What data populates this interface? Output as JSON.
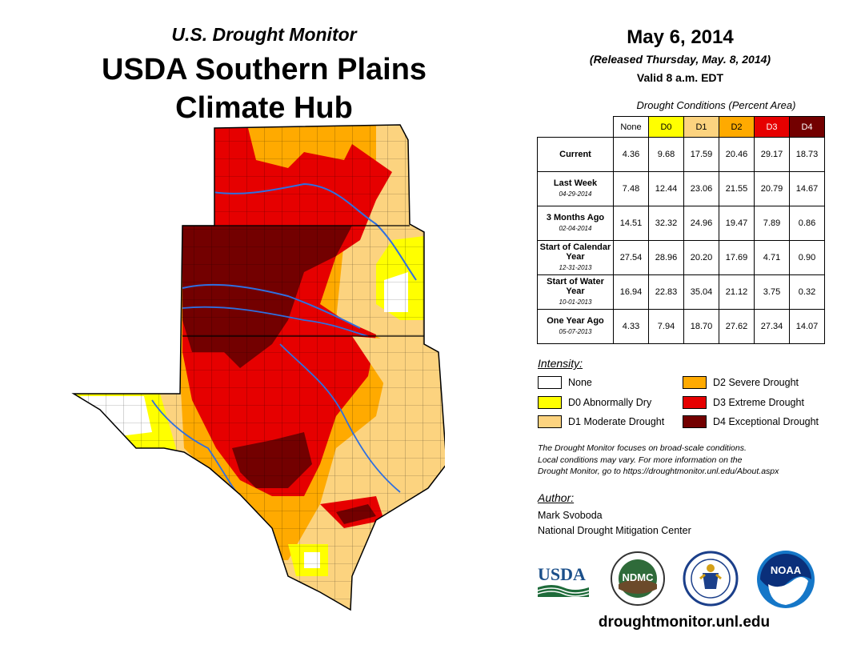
{
  "header": {
    "supertitle": "U.S. Drought Monitor",
    "title_line1": "USDA Southern Plains",
    "title_line2": "Climate Hub"
  },
  "release": {
    "date": "May 6, 2014",
    "released": "(Released Thursday, May. 8, 2014)",
    "valid": "Valid 8 a.m. EDT"
  },
  "table": {
    "title": "Drought Conditions (Percent Area)",
    "columns": [
      "None",
      "D0",
      "D1",
      "D2",
      "D3",
      "D4"
    ],
    "column_colors": [
      "#ffffff",
      "#ffff00",
      "#fcd37f",
      "#ffaa00",
      "#e60000",
      "#730000"
    ],
    "column_text_colors": [
      "#000000",
      "#000000",
      "#000000",
      "#000000",
      "#ffffff",
      "#ffffff"
    ],
    "rows": [
      {
        "label": "Current",
        "sublabel": "",
        "values": [
          "4.36",
          "9.68",
          "17.59",
          "20.46",
          "29.17",
          "18.73"
        ]
      },
      {
        "label": "Last Week",
        "sublabel": "04-29-2014",
        "values": [
          "7.48",
          "12.44",
          "23.06",
          "21.55",
          "20.79",
          "14.67"
        ]
      },
      {
        "label": "3 Months Ago",
        "sublabel": "02-04-2014",
        "values": [
          "14.51",
          "32.32",
          "24.96",
          "19.47",
          "7.89",
          "0.86"
        ]
      },
      {
        "label": "Start of Calendar Year",
        "sublabel": "12-31-2013",
        "values": [
          "27.54",
          "28.96",
          "20.20",
          "17.69",
          "4.71",
          "0.90"
        ]
      },
      {
        "label": "Start of Water Year",
        "sublabel": "10-01-2013",
        "values": [
          "16.94",
          "22.83",
          "35.04",
          "21.12",
          "3.75",
          "0.32"
        ]
      },
      {
        "label": "One Year Ago",
        "sublabel": "05-07-2013",
        "values": [
          "4.33",
          "7.94",
          "18.70",
          "27.62",
          "27.34",
          "14.07"
        ]
      }
    ]
  },
  "legend": {
    "title": "Intensity:",
    "items": [
      {
        "label": "None",
        "color": "#ffffff"
      },
      {
        "label": "D0 Abnormally Dry",
        "color": "#ffff00"
      },
      {
        "label": "D1 Moderate Drought",
        "color": "#fcd37f"
      },
      {
        "label": "D2 Severe Drought",
        "color": "#ffaa00"
      },
      {
        "label": "D3 Extreme Drought",
        "color": "#e60000"
      },
      {
        "label": "D4 Exceptional Drought",
        "color": "#730000"
      }
    ]
  },
  "note": {
    "line1": "The Drought Monitor focuses on broad-scale conditions.",
    "line2": "Local conditions may vary. For more information on the",
    "line3": "Drought Monitor, go to https://droughtmonitor.unl.edu/About.aspx"
  },
  "author": {
    "title": "Author:",
    "name": "Mark Svoboda",
    "org": "National Drought Mitigation Center"
  },
  "logos": {
    "usda": "USDA",
    "ndmc": "NDMC",
    "noaa": "NOAA"
  },
  "website": "droughtmonitor.unl.edu"
}
